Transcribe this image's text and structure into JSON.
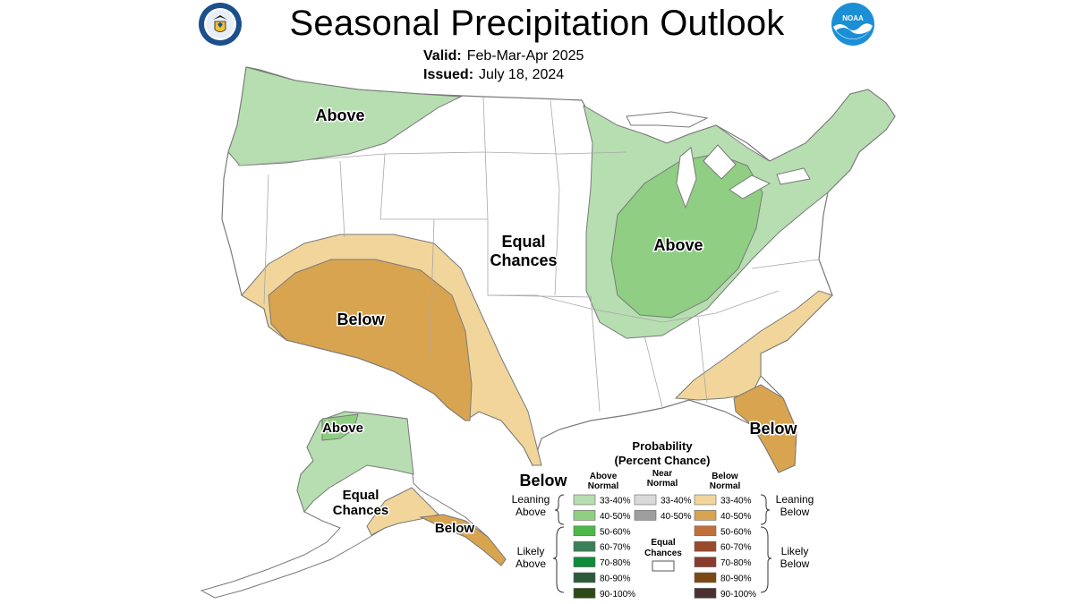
{
  "title": "Seasonal Precipitation Outlook",
  "valid_label": "Valid:",
  "valid_value": "Feb-Mar-Apr 2025",
  "issued_label": "Issued:",
  "issued_value": "July 18, 2024",
  "logos": {
    "left": {
      "icon": "department-of-commerce-seal-icon"
    },
    "right": {
      "icon": "noaa-logo-icon",
      "text": "NOAA"
    }
  },
  "colors": {
    "above_33_40": "#b6deb0",
    "above_40_50": "#8fce83",
    "below_33_40": "#f1d59a",
    "below_40_50": "#d9a450",
    "map_line": "#8a8a8a"
  },
  "regions": [
    {
      "id": "pnw",
      "text": "Above"
    },
    {
      "id": "equal-chances",
      "text": "Equal\nChances"
    },
    {
      "id": "midwest",
      "text": "Above"
    },
    {
      "id": "southwest",
      "text": "Below"
    },
    {
      "id": "texas",
      "text": "Below"
    },
    {
      "id": "florida",
      "text": "Below"
    },
    {
      "id": "alaska-north",
      "text": "Above"
    },
    {
      "id": "alaska-center",
      "text": "Equal\nChances"
    },
    {
      "id": "alaska-south",
      "text": "Below"
    }
  ],
  "legend": {
    "title": "Probability",
    "subtitle": "(Percent Chance)",
    "col_above": "Above\nNormal",
    "col_near": "Near\nNormal",
    "col_below": "Below\nNormal",
    "leaning_above": "Leaning\nAbove",
    "likely_above": "Likely\nAbove",
    "leaning_below": "Leaning\nBelow",
    "likely_below": "Likely\nBelow",
    "equal_chances": "Equal\nChances",
    "above_rows": [
      {
        "label": "33-40%",
        "color": "#b6deb0"
      },
      {
        "label": "40-50%",
        "color": "#8fce83"
      },
      {
        "label": "50-60%",
        "color": "#4db848"
      },
      {
        "label": "60-70%",
        "color": "#3b8158"
      },
      {
        "label": "70-80%",
        "color": "#0e8c3a"
      },
      {
        "label": "80-90%",
        "color": "#2b5a3a"
      },
      {
        "label": "90-100%",
        "color": "#2d4a16"
      }
    ],
    "near_rows": [
      {
        "label": "33-40%",
        "color": "#d9d9d9"
      },
      {
        "label": "40-50%",
        "color": "#9e9e9e"
      }
    ],
    "below_rows": [
      {
        "label": "33-40%",
        "color": "#f1d59a"
      },
      {
        "label": "40-50%",
        "color": "#d9a450"
      },
      {
        "label": "50-60%",
        "color": "#c0703c"
      },
      {
        "label": "60-70%",
        "color": "#9a4a2c"
      },
      {
        "label": "70-80%",
        "color": "#8a3b2e"
      },
      {
        "label": "80-90%",
        "color": "#7a4812"
      },
      {
        "label": "90-100%",
        "color": "#4a3030"
      }
    ]
  }
}
